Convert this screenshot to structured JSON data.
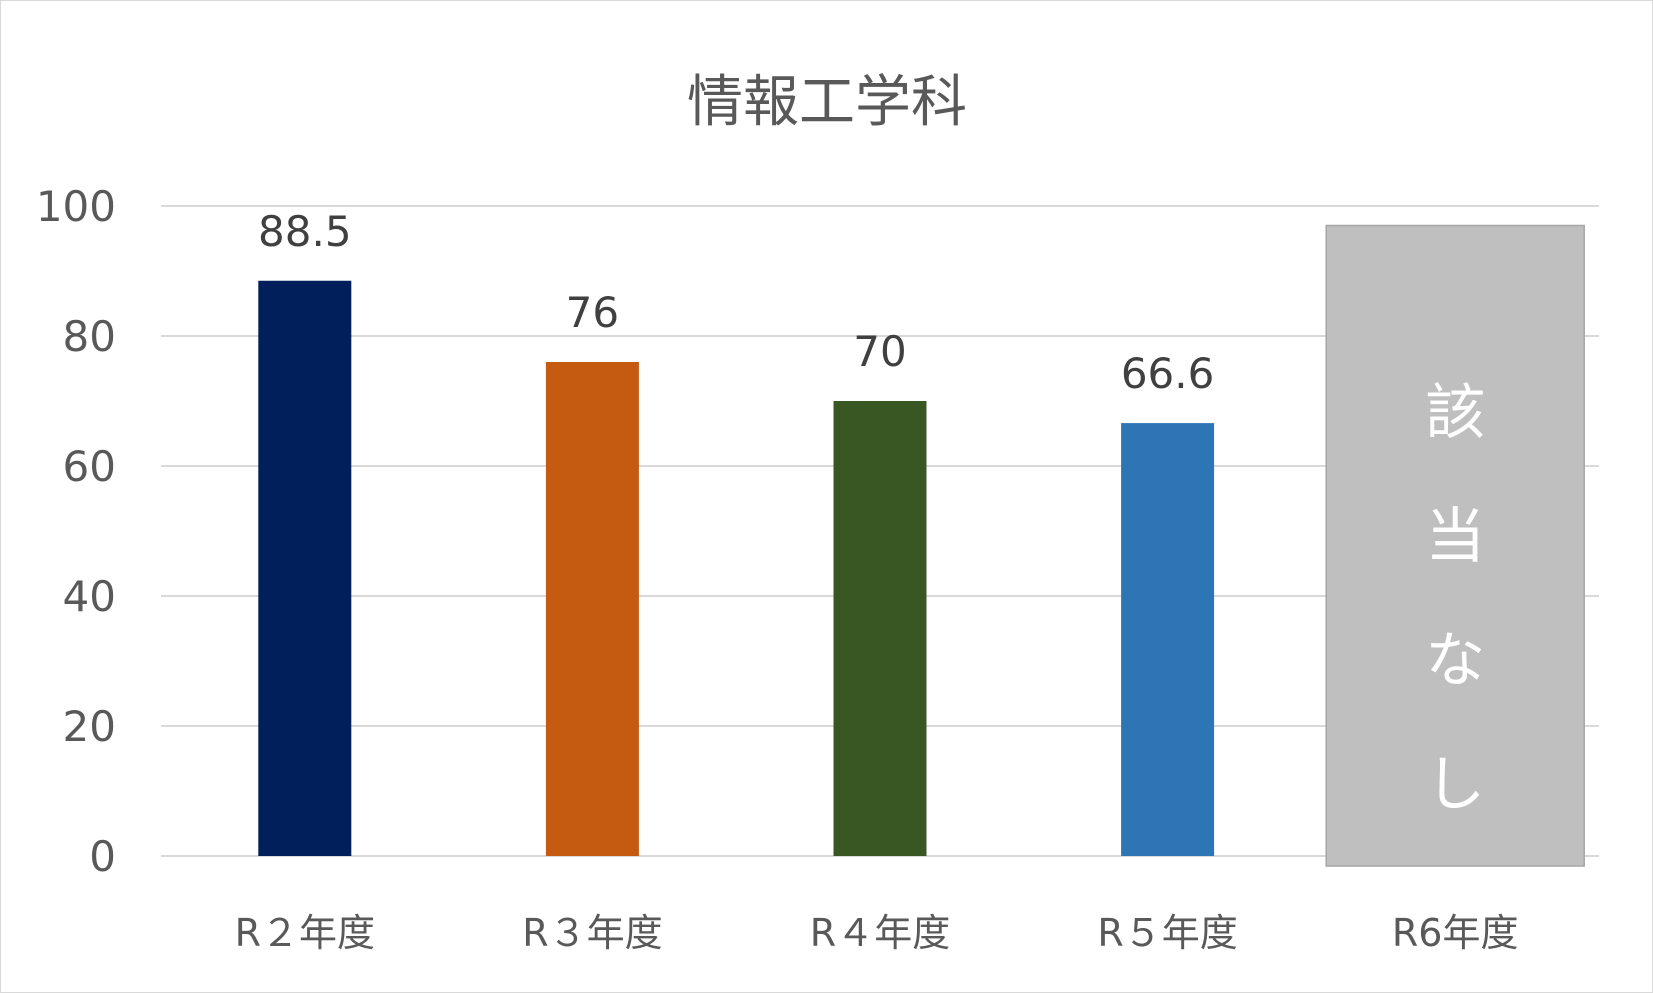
{
  "chart_data": {
    "type": "bar",
    "title": "情報工学科",
    "categories": [
      "R２年度",
      "R３年度",
      "R４年度",
      "R５年度",
      "R6年度"
    ],
    "values": [
      88.5,
      76,
      70,
      66.6,
      null
    ],
    "data_labels": [
      "88.5",
      "76",
      "70",
      "66.6",
      ""
    ],
    "bar_colors": [
      "#001f5b",
      "#c55a11",
      "#385723",
      "#2e75b6",
      "#bfbfbf"
    ],
    "ylim": [
      0,
      100
    ],
    "yticks": [
      0,
      20,
      40,
      60,
      80,
      100
    ],
    "grid": true,
    "legend": "none",
    "xlabel": "",
    "ylabel": "",
    "annotation": {
      "category": "R6年度",
      "text": "該当なし",
      "color": "#bfbfbf"
    }
  }
}
